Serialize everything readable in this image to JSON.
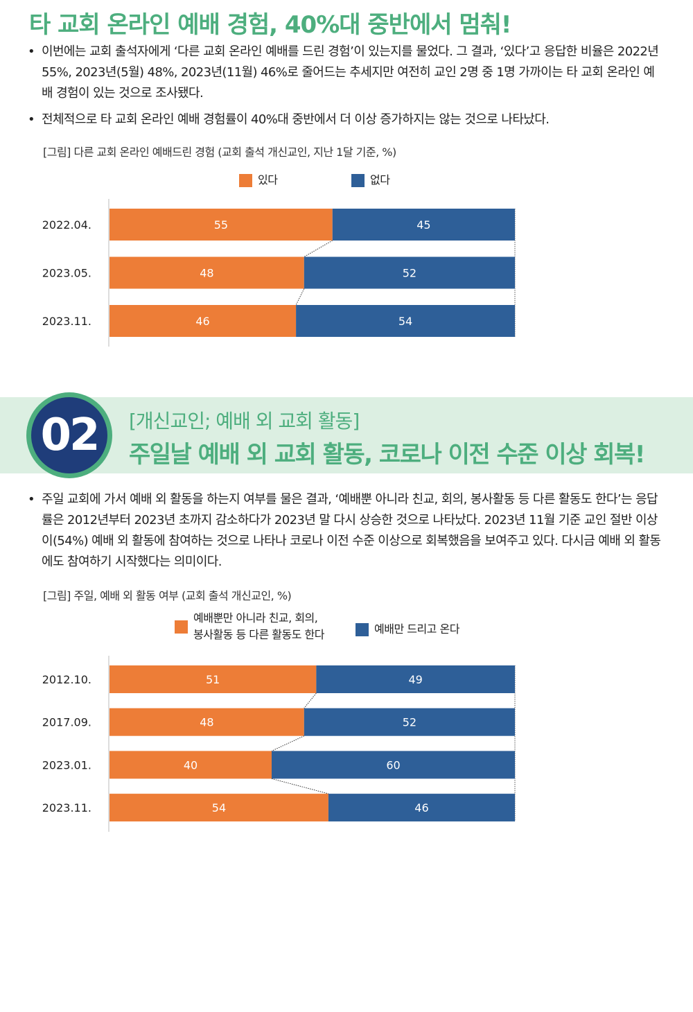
{
  "section1": {
    "title": "타 교회 온라인 예배 경험, 40%대 중반에서 멈춰!",
    "bullets": [
      "이번에는 교회 출석자에게 ‘다른 교회 온라인 예배를 드린 경험’이 있는지를 물었다. 그 결과, ‘있다’고 응답한 비율은 2022년 55%, 2023년(5월) 48%, 2023년(11월) 46%로 줄어드는 추세지만 여전히 교인 2명 중 1명 가까이는 타 교회 온라인 예배 경험이 있는 것으로 조사됐다.",
      "전체적으로 타 교회 온라인 예배 경험률이 40%대 중반에서 더 이상 증가하지는 않는 것으로 나타났다."
    ],
    "caption": "[그림] 다른 교회 온라인 예배드린 경험 (교회 출석 개신교인, 지난 1달 기준, %)"
  },
  "section2": {
    "number": "02",
    "subtitle": "[개신교인; 예배 외 교회 활동]",
    "title": "주일날 예배 외 교회 활동, 코로나 이전 수준 이상 회복!",
    "bullets": [
      "주일 교회에 가서 예배 외 활동을 하는지 여부를 물은 결과, ‘예배뿐 아니라 친교, 회의, 봉사활동 등 다른 활동도 한다’는 응답률은 2012년부터 2023년 초까지 감소하다가 2023년 말 다시 상승한 것으로 나타났다. 2023년 11월 기준 교인 절반 이상이(54%) 예배 외 활동에 참여하는 것으로 나타나 코로나 이전 수준 이상으로 회복했음을 보여주고 있다. 다시금 예배 외 활동에도 참여하기 시작했다는 의미이다."
    ],
    "caption": "[그림] 주일, 예배 외 활동 여부 (교회 출석 개신교인, %)"
  },
  "bullet_glyph": "•",
  "colors": {
    "orange": "#ed7d37",
    "blue": "#2e5f98",
    "green": "#4dae7e",
    "navy": "#1f3d7a",
    "band": "#dcefe2"
  },
  "chart_data": [
    {
      "type": "bar",
      "orientation": "horizontal-stacked-100",
      "title": "",
      "categories": [
        "2022.04.",
        "2023.05.",
        "2023.11."
      ],
      "series": [
        {
          "name": "있다",
          "values": [
            55,
            48,
            46
          ]
        },
        {
          "name": "없다",
          "values": [
            45,
            52,
            54
          ]
        }
      ],
      "xlim": [
        0,
        100
      ],
      "legend": "top",
      "grid": false
    },
    {
      "type": "bar",
      "orientation": "horizontal-stacked-100",
      "title": "",
      "categories": [
        "2012.10.",
        "2017.09.",
        "2023.01.",
        "2023.11."
      ],
      "series": [
        {
          "name": "예배뿐만 아니라 친교, 회의,\n봉사활동 등 다른 활동도 한다",
          "values": [
            51,
            48,
            40,
            54
          ]
        },
        {
          "name": "예배만 드리고 온다",
          "values": [
            49,
            52,
            60,
            46
          ]
        }
      ],
      "xlim": [
        0,
        100
      ],
      "legend": "top",
      "grid": false
    }
  ]
}
